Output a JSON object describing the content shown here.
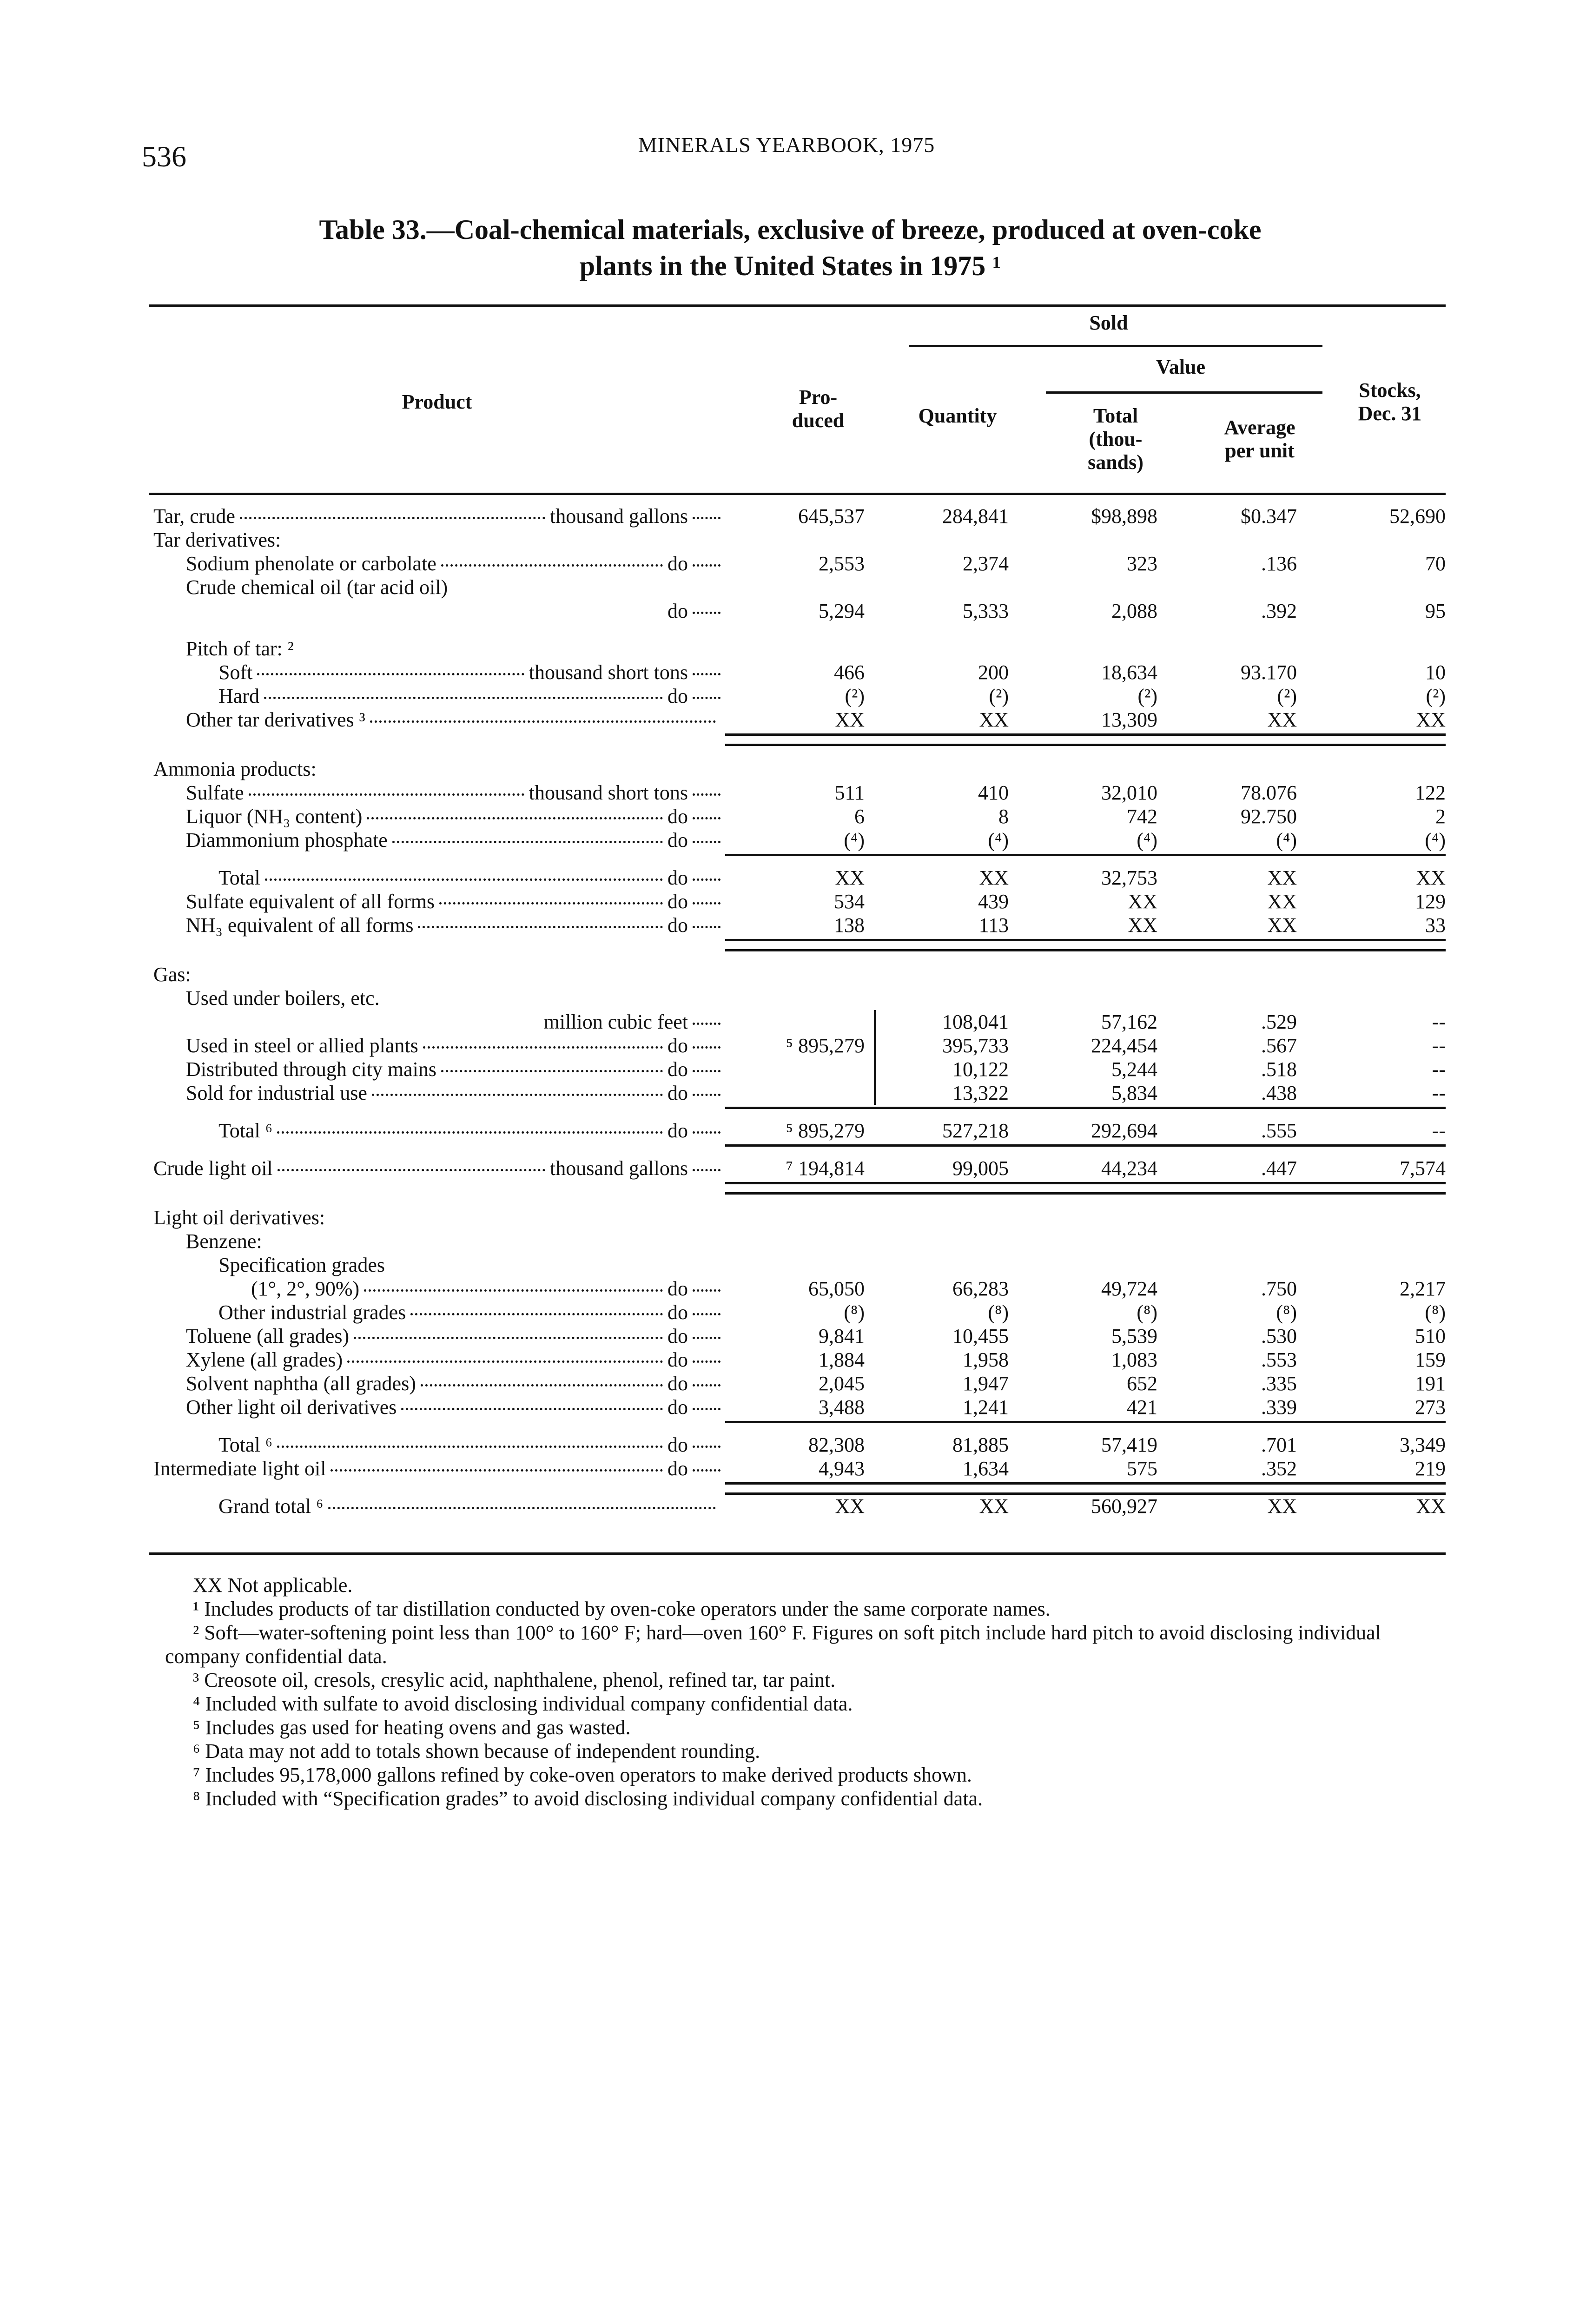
{
  "page_number": "536",
  "running_head": "MINERALS YEARBOOK, 1975",
  "title_line1": "Table 33.—Coal-chemical materials, exclusive of breeze, produced at oven-coke",
  "title_line2": "plants in the United States in 1975 ¹",
  "header": {
    "product": "Product",
    "produced": "Pro-\nduced",
    "sold": "Sold",
    "quantity": "Quantity",
    "value": "Value",
    "total": "Total\n(thou-\nsands)",
    "average": "Average\nper unit",
    "stocks": "Stocks,\nDec. 31"
  },
  "rows": [
    {
      "label": "Tar, crude",
      "unit": "thousand gallons",
      "level": 0,
      "values": [
        "645,537",
        "284,841",
        "$98,898",
        "$0.347",
        "52,690"
      ]
    },
    {
      "label": "Tar derivatives:",
      "level": 0
    },
    {
      "label": "Sodium phenolate or carbolate",
      "unit": "do",
      "level": 1,
      "values": [
        "2,553",
        "2,374",
        "323",
        ".136",
        "70"
      ]
    },
    {
      "label": "Crude chemical oil (tar acid oil)",
      "level": 1
    },
    {
      "label": "",
      "unit": "do",
      "level": 1,
      "values": [
        "5,294",
        "5,333",
        "2,088",
        ".392",
        "95"
      ]
    },
    {
      "label": "Pitch of tar: ²",
      "level": 1
    },
    {
      "label": "Soft",
      "unit": "thousand short tons",
      "level": 2,
      "values": [
        "466",
        "200",
        "18,634",
        "93.170",
        "10"
      ]
    },
    {
      "label": "Hard",
      "unit": "do",
      "level": 2,
      "values": [
        "(²)",
        "(²)",
        "(²)",
        "(²)",
        "(²)"
      ]
    },
    {
      "label": "Other tar derivatives ³",
      "unit": "",
      "level": 1,
      "values": [
        "XX",
        "XX",
        "13,309",
        "XX",
        "XX"
      ]
    },
    {
      "label": "Ammonia products:",
      "level": 0
    },
    {
      "label": "Sulfate",
      "unit": "thousand short tons",
      "level": 1,
      "values": [
        "511",
        "410",
        "32,010",
        "78.076",
        "122"
      ]
    },
    {
      "label": "Liquor (NH₃ content)",
      "unit": "do",
      "level": 1,
      "values": [
        "6",
        "8",
        "742",
        "92.750",
        "2"
      ]
    },
    {
      "label": "Diammonium phosphate",
      "unit": "do",
      "level": 1,
      "values": [
        "(⁴)",
        "(⁴)",
        "(⁴)",
        "(⁴)",
        "(⁴)"
      ]
    },
    {
      "label": "Total",
      "unit": "do",
      "level": 2,
      "values": [
        "XX",
        "XX",
        "32,753",
        "XX",
        "XX"
      ]
    },
    {
      "label": "Sulfate equivalent of all forms",
      "unit": "do",
      "level": 1,
      "values": [
        "534",
        "439",
        "XX",
        "XX",
        "129"
      ]
    },
    {
      "label": "NH₃ equivalent of all forms",
      "unit": "do",
      "level": 1,
      "values": [
        "138",
        "113",
        "XX",
        "XX",
        "33"
      ]
    },
    {
      "label": "Gas:",
      "level": 0
    },
    {
      "label": "Used under boilers, etc.",
      "level": 1
    },
    {
      "label": "",
      "unit": "million cubic feet",
      "level": 1,
      "values": [
        "",
        "108,041",
        "57,162",
        ".529",
        "--"
      ]
    },
    {
      "label": "Used in steel or allied plants",
      "unit": "do",
      "level": 1,
      "values": [
        "⁵ 895,279",
        "395,733",
        "224,454",
        ".567",
        "--"
      ]
    },
    {
      "label": "Distributed through city mains",
      "unit": "do",
      "level": 1,
      "values": [
        "",
        "10,122",
        "5,244",
        ".518",
        "--"
      ]
    },
    {
      "label": "Sold for industrial use",
      "unit": "do",
      "level": 1,
      "values": [
        "",
        "13,322",
        "5,834",
        ".438",
        "--"
      ]
    },
    {
      "label": "Total ⁶",
      "unit": "do",
      "level": 2,
      "values": [
        "⁵ 895,279",
        "527,218",
        "292,694",
        ".555",
        "--"
      ]
    },
    {
      "label": "Crude light oil",
      "unit": "thousand gallons",
      "level": 0,
      "values": [
        "⁷ 194,814",
        "99,005",
        "44,234",
        ".447",
        "7,574"
      ]
    },
    {
      "label": "Light oil derivatives:",
      "level": 0
    },
    {
      "label": "Benzene:",
      "level": 1
    },
    {
      "label": "Specification grades",
      "level": 2
    },
    {
      "label": "(1°, 2°, 90%)",
      "unit": "do",
      "level": 3,
      "values": [
        "65,050",
        "66,283",
        "49,724",
        ".750",
        "2,217"
      ]
    },
    {
      "label": "Other industrial grades",
      "unit": "do",
      "level": 2,
      "values": [
        "(⁸)",
        "(⁸)",
        "(⁸)",
        "(⁸)",
        "(⁸)"
      ]
    },
    {
      "label": "Toluene (all grades)",
      "unit": "do",
      "level": 1,
      "values": [
        "9,841",
        "10,455",
        "5,539",
        ".530",
        "510"
      ]
    },
    {
      "label": "Xylene (all grades)",
      "unit": "do",
      "level": 1,
      "values": [
        "1,884",
        "1,958",
        "1,083",
        ".553",
        "159"
      ]
    },
    {
      "label": "Solvent naphtha (all grades)",
      "unit": "do",
      "level": 1,
      "values": [
        "2,045",
        "1,947",
        "652",
        ".335",
        "191"
      ]
    },
    {
      "label": "Other light oil derivatives",
      "unit": "do",
      "level": 1,
      "values": [
        "3,488",
        "1,241",
        "421",
        ".339",
        "273"
      ]
    },
    {
      "label": "Total ⁶",
      "unit": "do",
      "level": 2,
      "values": [
        "82,308",
        "81,885",
        "57,419",
        ".701",
        "3,349"
      ]
    },
    {
      "label": "Intermediate light oil",
      "unit": "do",
      "level": 0,
      "values": [
        "4,943",
        "1,634",
        "575",
        ".352",
        "219"
      ]
    },
    {
      "label": "Grand total ⁶",
      "unit": "",
      "level": 2,
      "values": [
        "XX",
        "XX",
        "560,927",
        "XX",
        "XX"
      ]
    }
  ],
  "footnotes": [
    "XX Not applicable.",
    "¹ Includes products of tar distillation conducted by oven-coke operators under the same corporate names.",
    "² Soft—water-softening point less than 100° to 160° F; hard—oven 160° F. Figures on soft pitch include hard pitch to avoid disclosing individual company confidential data.",
    "³ Creosote oil, cresols, cresylic acid, naphthalene, phenol, refined tar, tar paint.",
    "⁴ Included with sulfate to avoid disclosing individual company confidential data.",
    "⁵ Includes gas used for heating ovens and gas wasted.",
    "⁶ Data may not add to totals shown because of independent rounding.",
    "⁷ Includes 95,178,000 gallons refined by coke-oven operators to make derived products shown.",
    "⁸ Included with “Specification grades” to avoid disclosing individual company confidential data."
  ]
}
